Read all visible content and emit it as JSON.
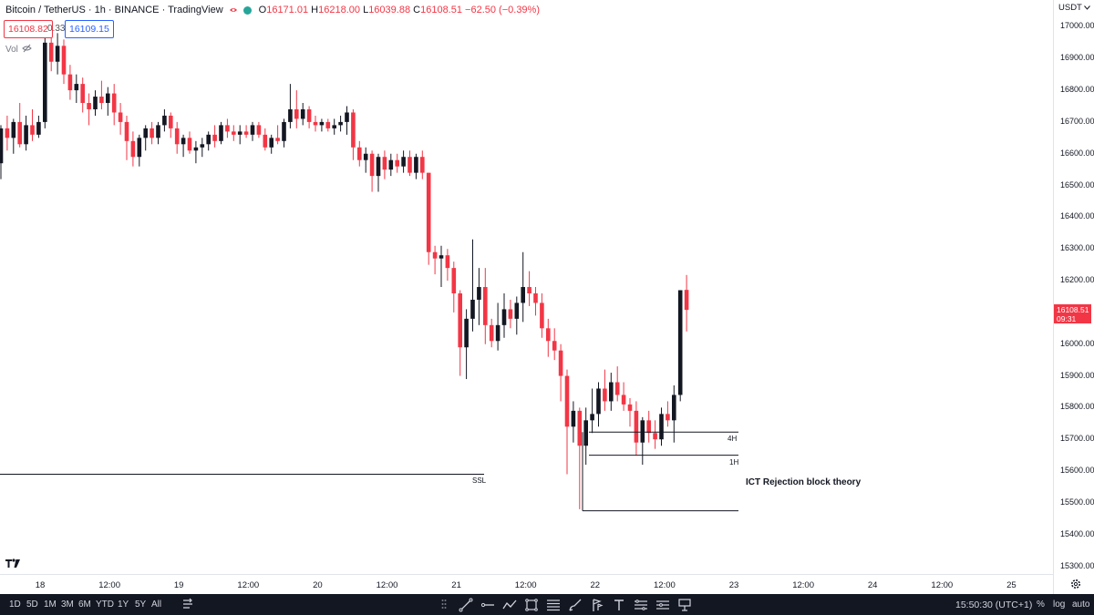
{
  "legend": {
    "symbol": "Bitcoin / TetherUS · 1h · BINANCE · TradingView",
    "open_key": "O",
    "open": "16171.01",
    "high_key": "H",
    "high": "16218.00",
    "low_key": "L",
    "low": "16039.88",
    "close_key": "C",
    "close": "16108.51",
    "change": "−62.50 (−0.39%)"
  },
  "bid": "16108.82",
  "spread": "0.33",
  "ask": "16109.15",
  "volume_label": "Vol",
  "currency": "USDT",
  "last_price_label": "16108.51",
  "countdown": "09:31",
  "price_ticks": [
    "17000.00",
    "16900.00",
    "16800.00",
    "16700.00",
    "16600.00",
    "16500.00",
    "16400.00",
    "16300.00",
    "16200.00",
    "16000.00",
    "15900.00",
    "15800.00",
    "15700.00",
    "15600.00",
    "15500.00",
    "15400.00",
    "15300.00"
  ],
  "time_ticks": [
    "18",
    "12:00",
    "19",
    "12:00",
    "20",
    "12:00",
    "21",
    "12:00",
    "22",
    "12:00",
    "23",
    "12:00",
    "24",
    "12:00",
    "25"
  ],
  "chart_labels": {
    "ssl": "SSL",
    "h4": "4H",
    "h1": "1H",
    "annotation": "ICT Rejection block theory"
  },
  "ranges": [
    "1D",
    "5D",
    "1M",
    "3M",
    "6M",
    "YTD",
    "1Y",
    "5Y",
    "All"
  ],
  "clock": "15:50:30 (UTC+1)",
  "scale_buttons": {
    "percent": "%",
    "log": "log",
    "auto": "auto"
  },
  "colors": {
    "up": "#131722",
    "down": "#f23645",
    "last_price_bg": "#f23645",
    "ask_border": "#2962ff",
    "bid_border": "#f23645",
    "bottom_bar": "#131722"
  },
  "toolbar_icons": [
    "drag-handle-icon",
    "trend-line-icon",
    "horizontal-ray-icon",
    "path-icon",
    "rectangle-icon",
    "fib-icon",
    "brush-icon",
    "flag-icon",
    "text-icon",
    "long-position-icon",
    "measure-icon",
    "alert-icon"
  ],
  "chart_data": {
    "type": "candlestick",
    "symbol": "BTCUSDT",
    "interval": "1h",
    "ylim": [
      15270,
      17050
    ],
    "levels": [
      {
        "label": "SSL",
        "price": 15590
      },
      {
        "label": "4H",
        "price": 15723
      },
      {
        "label": "1H",
        "price": 15650
      },
      {
        "label": "",
        "price": 15475
      }
    ],
    "candles": [
      {
        "o": 16570,
        "h": 16690,
        "l": 16520,
        "c": 16680
      },
      {
        "o": 16680,
        "h": 16720,
        "l": 16610,
        "c": 16650
      },
      {
        "o": 16650,
        "h": 16710,
        "l": 16600,
        "c": 16700
      },
      {
        "o": 16700,
        "h": 16760,
        "l": 16620,
        "c": 16630
      },
      {
        "o": 16630,
        "h": 16720,
        "l": 16610,
        "c": 16690
      },
      {
        "o": 16690,
        "h": 16740,
        "l": 16640,
        "c": 16660
      },
      {
        "o": 16660,
        "h": 16720,
        "l": 16650,
        "c": 16700
      },
      {
        "o": 16700,
        "h": 17020,
        "l": 16680,
        "c": 16950
      },
      {
        "o": 16950,
        "h": 17000,
        "l": 16860,
        "c": 16890
      },
      {
        "o": 16890,
        "h": 16980,
        "l": 16850,
        "c": 16940
      },
      {
        "o": 16940,
        "h": 16960,
        "l": 16820,
        "c": 16850
      },
      {
        "o": 16850,
        "h": 16880,
        "l": 16770,
        "c": 16800
      },
      {
        "o": 16800,
        "h": 16850,
        "l": 16760,
        "c": 16820
      },
      {
        "o": 16820,
        "h": 16840,
        "l": 16730,
        "c": 16760
      },
      {
        "o": 16760,
        "h": 16790,
        "l": 16690,
        "c": 16740
      },
      {
        "o": 16740,
        "h": 16800,
        "l": 16720,
        "c": 16780
      },
      {
        "o": 16780,
        "h": 16830,
        "l": 16740,
        "c": 16760
      },
      {
        "o": 16760,
        "h": 16810,
        "l": 16720,
        "c": 16790
      },
      {
        "o": 16790,
        "h": 16820,
        "l": 16690,
        "c": 16730
      },
      {
        "o": 16730,
        "h": 16760,
        "l": 16660,
        "c": 16700
      },
      {
        "o": 16700,
        "h": 16720,
        "l": 16580,
        "c": 16640
      },
      {
        "o": 16640,
        "h": 16670,
        "l": 16560,
        "c": 16590
      },
      {
        "o": 16590,
        "h": 16660,
        "l": 16560,
        "c": 16650
      },
      {
        "o": 16650,
        "h": 16690,
        "l": 16610,
        "c": 16680
      },
      {
        "o": 16680,
        "h": 16700,
        "l": 16630,
        "c": 16650
      },
      {
        "o": 16650,
        "h": 16700,
        "l": 16630,
        "c": 16690
      },
      {
        "o": 16690,
        "h": 16740,
        "l": 16670,
        "c": 16720
      },
      {
        "o": 16720,
        "h": 16730,
        "l": 16650,
        "c": 16680
      },
      {
        "o": 16680,
        "h": 16700,
        "l": 16600,
        "c": 16630
      },
      {
        "o": 16630,
        "h": 16660,
        "l": 16590,
        "c": 16650
      },
      {
        "o": 16650,
        "h": 16670,
        "l": 16600,
        "c": 16610
      },
      {
        "o": 16610,
        "h": 16640,
        "l": 16570,
        "c": 16620
      },
      {
        "o": 16620,
        "h": 16650,
        "l": 16590,
        "c": 16630
      },
      {
        "o": 16630,
        "h": 16670,
        "l": 16610,
        "c": 16660
      },
      {
        "o": 16660,
        "h": 16690,
        "l": 16620,
        "c": 16640
      },
      {
        "o": 16640,
        "h": 16700,
        "l": 16630,
        "c": 16690
      },
      {
        "o": 16690,
        "h": 16710,
        "l": 16650,
        "c": 16670
      },
      {
        "o": 16670,
        "h": 16690,
        "l": 16640,
        "c": 16660
      },
      {
        "o": 16660,
        "h": 16690,
        "l": 16630,
        "c": 16670
      },
      {
        "o": 16670,
        "h": 16690,
        "l": 16650,
        "c": 16660
      },
      {
        "o": 16660,
        "h": 16700,
        "l": 16640,
        "c": 16690
      },
      {
        "o": 16690,
        "h": 16700,
        "l": 16650,
        "c": 16660
      },
      {
        "o": 16660,
        "h": 16680,
        "l": 16610,
        "c": 16620
      },
      {
        "o": 16620,
        "h": 16660,
        "l": 16600,
        "c": 16650
      },
      {
        "o": 16650,
        "h": 16690,
        "l": 16630,
        "c": 16640
      },
      {
        "o": 16640,
        "h": 16710,
        "l": 16620,
        "c": 16700
      },
      {
        "o": 16700,
        "h": 16820,
        "l": 16680,
        "c": 16740
      },
      {
        "o": 16740,
        "h": 16800,
        "l": 16680,
        "c": 16710
      },
      {
        "o": 16710,
        "h": 16760,
        "l": 16690,
        "c": 16740
      },
      {
        "o": 16740,
        "h": 16750,
        "l": 16680,
        "c": 16700
      },
      {
        "o": 16700,
        "h": 16720,
        "l": 16670,
        "c": 16690
      },
      {
        "o": 16690,
        "h": 16710,
        "l": 16670,
        "c": 16700
      },
      {
        "o": 16700,
        "h": 16710,
        "l": 16670,
        "c": 16680
      },
      {
        "o": 16680,
        "h": 16710,
        "l": 16660,
        "c": 16690
      },
      {
        "o": 16690,
        "h": 16720,
        "l": 16670,
        "c": 16700
      },
      {
        "o": 16700,
        "h": 16750,
        "l": 16660,
        "c": 16730
      },
      {
        "o": 16730,
        "h": 16740,
        "l": 16580,
        "c": 16620
      },
      {
        "o": 16620,
        "h": 16640,
        "l": 16560,
        "c": 16580
      },
      {
        "o": 16580,
        "h": 16620,
        "l": 16540,
        "c": 16600
      },
      {
        "o": 16600,
        "h": 16610,
        "l": 16480,
        "c": 16530
      },
      {
        "o": 16530,
        "h": 16600,
        "l": 16480,
        "c": 16590
      },
      {
        "o": 16590,
        "h": 16610,
        "l": 16520,
        "c": 16550
      },
      {
        "o": 16550,
        "h": 16600,
        "l": 16530,
        "c": 16580
      },
      {
        "o": 16580,
        "h": 16600,
        "l": 16540,
        "c": 16560
      },
      {
        "o": 16560,
        "h": 16610,
        "l": 16540,
        "c": 16590
      },
      {
        "o": 16590,
        "h": 16610,
        "l": 16530,
        "c": 16540
      },
      {
        "o": 16540,
        "h": 16600,
        "l": 16520,
        "c": 16590
      },
      {
        "o": 16590,
        "h": 16610,
        "l": 16520,
        "c": 16540
      },
      {
        "o": 16540,
        "h": 16540,
        "l": 16250,
        "c": 16290
      },
      {
        "o": 16290,
        "h": 16310,
        "l": 16220,
        "c": 16270
      },
      {
        "o": 16270,
        "h": 16310,
        "l": 16180,
        "c": 16280
      },
      {
        "o": 16280,
        "h": 16300,
        "l": 16200,
        "c": 16240
      },
      {
        "o": 16240,
        "h": 16260,
        "l": 16100,
        "c": 16160
      },
      {
        "o": 16160,
        "h": 16170,
        "l": 15900,
        "c": 15990
      },
      {
        "o": 15990,
        "h": 16110,
        "l": 15890,
        "c": 16080
      },
      {
        "o": 16080,
        "h": 16330,
        "l": 16040,
        "c": 16140
      },
      {
        "o": 16140,
        "h": 16240,
        "l": 16060,
        "c": 16180
      },
      {
        "o": 16180,
        "h": 16240,
        "l": 16000,
        "c": 16060
      },
      {
        "o": 16060,
        "h": 16080,
        "l": 15990,
        "c": 16010
      },
      {
        "o": 16010,
        "h": 16130,
        "l": 15980,
        "c": 16060
      },
      {
        "o": 16060,
        "h": 16160,
        "l": 16020,
        "c": 16110
      },
      {
        "o": 16110,
        "h": 16140,
        "l": 16050,
        "c": 16080
      },
      {
        "o": 16080,
        "h": 16150,
        "l": 16030,
        "c": 16130
      },
      {
        "o": 16130,
        "h": 16290,
        "l": 16070,
        "c": 16180
      },
      {
        "o": 16180,
        "h": 16230,
        "l": 16120,
        "c": 16160
      },
      {
        "o": 16160,
        "h": 16180,
        "l": 16090,
        "c": 16130
      },
      {
        "o": 16130,
        "h": 16160,
        "l": 16020,
        "c": 16050
      },
      {
        "o": 16050,
        "h": 16080,
        "l": 15960,
        "c": 16010
      },
      {
        "o": 16010,
        "h": 16050,
        "l": 15950,
        "c": 15980
      },
      {
        "o": 15980,
        "h": 16000,
        "l": 15820,
        "c": 15900
      },
      {
        "o": 15900,
        "h": 15920,
        "l": 15590,
        "c": 15740
      },
      {
        "o": 15740,
        "h": 15820,
        "l": 15690,
        "c": 15790
      },
      {
        "o": 15790,
        "h": 15800,
        "l": 15480,
        "c": 15680
      },
      {
        "o": 15680,
        "h": 15800,
        "l": 15620,
        "c": 15760
      },
      {
        "o": 15760,
        "h": 15860,
        "l": 15720,
        "c": 15780
      },
      {
        "o": 15780,
        "h": 15880,
        "l": 15740,
        "c": 15860
      },
      {
        "o": 15860,
        "h": 15920,
        "l": 15790,
        "c": 15820
      },
      {
        "o": 15820,
        "h": 15910,
        "l": 15790,
        "c": 15880
      },
      {
        "o": 15880,
        "h": 15930,
        "l": 15820,
        "c": 15840
      },
      {
        "o": 15840,
        "h": 15880,
        "l": 15790,
        "c": 15810
      },
      {
        "o": 15810,
        "h": 15830,
        "l": 15740,
        "c": 15790
      },
      {
        "o": 15790,
        "h": 15820,
        "l": 15650,
        "c": 15690
      },
      {
        "o": 15690,
        "h": 15770,
        "l": 15620,
        "c": 15760
      },
      {
        "o": 15760,
        "h": 15790,
        "l": 15690,
        "c": 15720
      },
      {
        "o": 15720,
        "h": 15760,
        "l": 15670,
        "c": 15700
      },
      {
        "o": 15700,
        "h": 15800,
        "l": 15680,
        "c": 15780
      },
      {
        "o": 15780,
        "h": 15820,
        "l": 15740,
        "c": 15760
      },
      {
        "o": 15760,
        "h": 15870,
        "l": 15690,
        "c": 15840
      },
      {
        "o": 15840,
        "h": 16170,
        "l": 15820,
        "c": 16170
      },
      {
        "o": 16171,
        "h": 16218,
        "l": 16040,
        "c": 16108
      }
    ]
  }
}
